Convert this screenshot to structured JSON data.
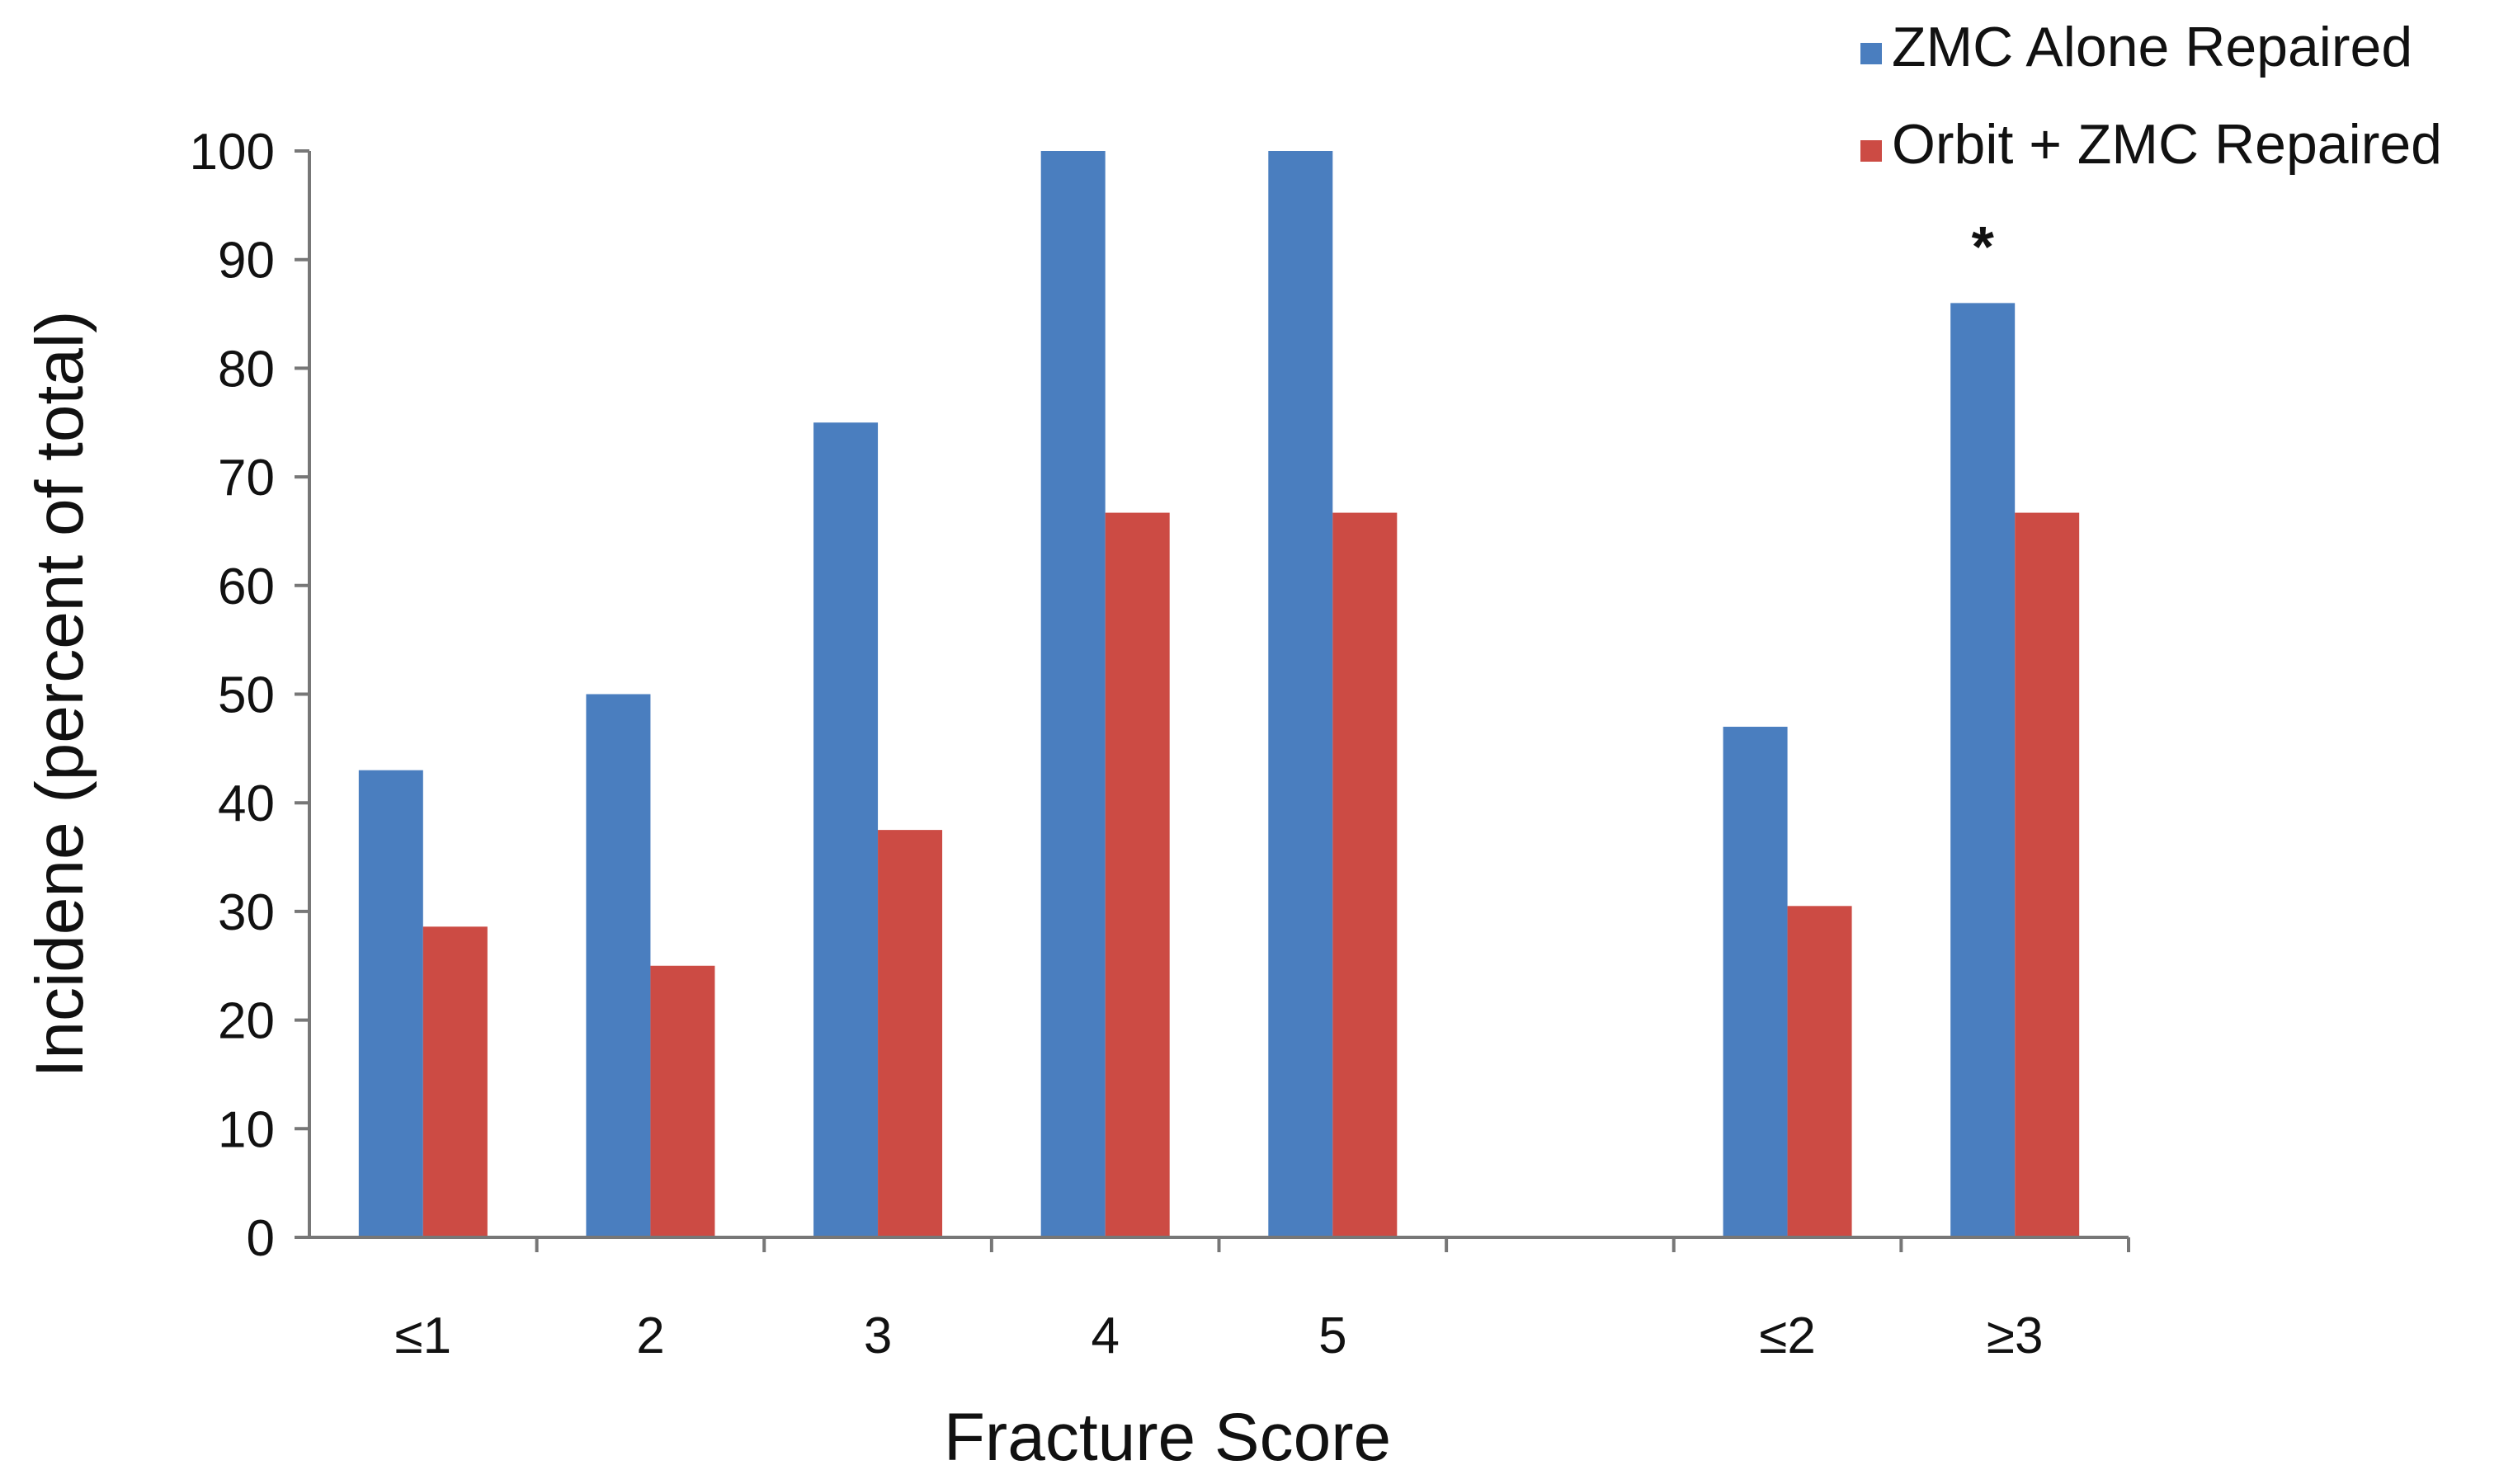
{
  "chart_data": {
    "type": "bar",
    "title": "",
    "xlabel": "Fracture Score",
    "ylabel": "Incidene (percent of total)",
    "ylim": [
      0,
      100
    ],
    "yticks": [
      0,
      10,
      20,
      30,
      40,
      50,
      60,
      70,
      80,
      90,
      100
    ],
    "grid": false,
    "legend_position": "top-right",
    "categories": [
      "≤1",
      "2",
      "3",
      "4",
      "5",
      "",
      "≤2",
      "≥3"
    ],
    "series": [
      {
        "name": "ZMC Alone Repaired",
        "color": "#4a7ebf",
        "values": [
          43,
          50,
          75,
          100,
          100,
          null,
          47,
          86
        ]
      },
      {
        "name": "Orbit + ZMC Repaired",
        "color": "#cc4b44",
        "values": [
          28.6,
          25,
          37.5,
          66.7,
          66.7,
          null,
          30.5,
          66.7
        ]
      }
    ],
    "annotations": [
      {
        "text": "*",
        "category": "≥3",
        "series": "ZMC Alone Repaired",
        "y": 91.5
      }
    ]
  }
}
